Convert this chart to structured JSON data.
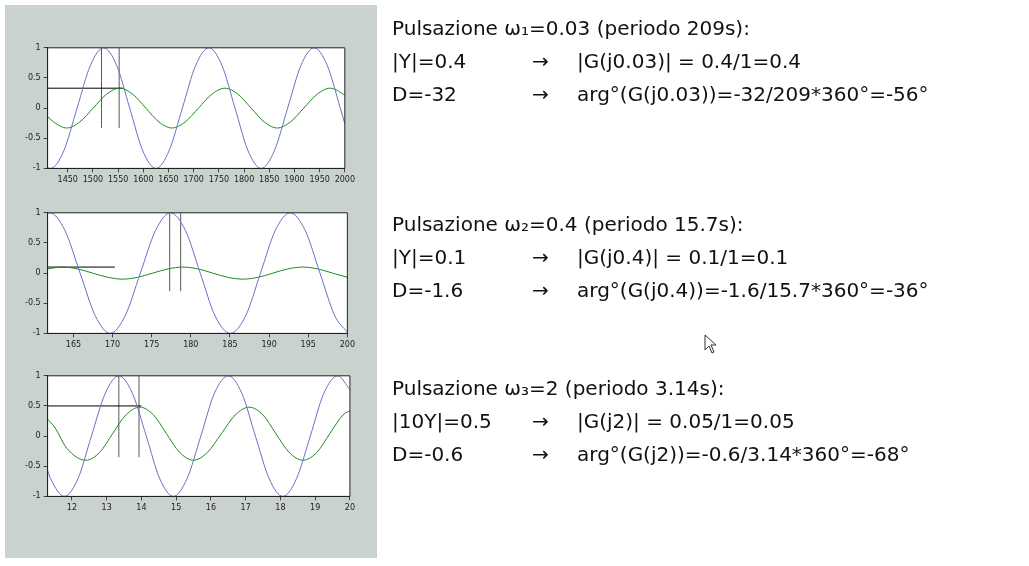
{
  "chart_data": [
    {
      "type": "line",
      "xlim": [
        1410,
        2000
      ],
      "xticks": [
        1450,
        1500,
        1550,
        1600,
        1650,
        1700,
        1750,
        1800,
        1850,
        1900,
        1950,
        2000
      ],
      "ylim": [
        -1,
        1
      ],
      "yticks": [
        -1,
        -0.5,
        0,
        0.5,
        1
      ],
      "grid": false,
      "legend": false,
      "marker": "none",
      "annotations": [
        "Pulsazione ω₁=0.03 (periodo 209s):",
        "|Y|=0.4",
        "→",
        "|G(j0.03)| = 0.4/1=0.4",
        "D=-32",
        "→",
        "arg°(G(j0.03))=-32/209*360°=-56°"
      ],
      "series": [
        {
          "color": "#6f6fc6",
          "x": [
            1410,
            1416,
            1442,
            1468.5,
            1495,
            1521,
            1547,
            1573,
            1599,
            1625,
            1651,
            1677.5,
            1704,
            1730,
            1756,
            1782,
            1808,
            1834,
            1860,
            1886.5,
            1913,
            1939,
            1965,
            1991,
            2000
          ],
          "values": [
            -0.99,
            -1,
            -0.71,
            0,
            0.71,
            1,
            0.71,
            0,
            -0.71,
            -1,
            -0.71,
            0,
            0.71,
            1,
            0.71,
            0,
            -0.71,
            -1,
            -0.71,
            0,
            0.71,
            1,
            0.71,
            0,
            -0.26
          ]
        },
        {
          "color": "#1f8a1f",
          "x": [
            1410,
            1422,
            1448,
            1474,
            1500.5,
            1527,
            1553,
            1579,
            1605,
            1631,
            1657,
            1683,
            1709.5,
            1736,
            1762,
            1788,
            1814,
            1840,
            1866,
            1892,
            1918.5,
            1945,
            1971,
            1997,
            2000
          ],
          "values": [
            -0.14,
            -0.23,
            -0.33,
            -0.23,
            0,
            0.23,
            0.33,
            0.23,
            0,
            -0.23,
            -0.33,
            -0.23,
            0,
            0.23,
            0.33,
            0.23,
            0,
            -0.23,
            -0.33,
            -0.23,
            0,
            0.23,
            0.33,
            0.23,
            0.21
          ]
        },
        {
          "color": "#000000",
          "x": [
            1410,
            1560
          ],
          "values": [
            0.33,
            0.33
          ]
        },
        {
          "color": "#555555",
          "x": [
            1517,
            1517
          ],
          "values": [
            -0.33,
            1
          ]
        },
        {
          "color": "#555555",
          "x": [
            1552,
            1552
          ],
          "values": [
            -0.33,
            1
          ]
        }
      ]
    },
    {
      "type": "line",
      "xlim": [
        161.7,
        200
      ],
      "xticks": [
        165,
        170,
        175,
        180,
        185,
        190,
        195,
        200
      ],
      "ylim": [
        -1,
        1
      ],
      "yticks": [
        -1,
        -0.5,
        0,
        0.5,
        1
      ],
      "grid": false,
      "legend": false,
      "marker": "none",
      "annotations": [
        "Pulsazione ω₂=0.4 (periodo 15.7s):",
        "|Y|=0.1",
        "→",
        "|G(j0.4)| = 0.1/1=0.1",
        "D=-1.6",
        "→",
        "arg°(G(j0.4))=-1.6/15.7*360°=-36°"
      ],
      "series": [
        {
          "color": "#6f6fc6",
          "x": [
            161.7,
            162,
            163.9,
            165.85,
            167.8,
            169.7,
            171.6,
            173.55,
            175.5,
            177.4,
            179.3,
            181.2,
            183.1,
            185.05,
            187,
            188.9,
            190.8,
            192.7,
            194.6,
            196.5,
            198.4,
            200
          ],
          "values": [
            0.99,
            1,
            0.71,
            0,
            -0.71,
            -1,
            -0.71,
            0,
            0.71,
            1,
            0.71,
            0,
            -0.71,
            -1,
            -0.71,
            0,
            0.71,
            1,
            0.71,
            0,
            -0.71,
            -0.98
          ]
        },
        {
          "color": "#1f8a1f",
          "x": [
            161.7,
            163.6,
            165.5,
            167.45,
            169.4,
            171.3,
            173.2,
            175.15,
            177.1,
            179,
            180.9,
            182.8,
            184.7,
            186.65,
            188.6,
            190.5,
            192.4,
            194.3,
            196.2,
            198.1,
            200
          ],
          "values": [
            0.07,
            0.1,
            0.07,
            0,
            -0.07,
            -0.1,
            -0.07,
            0,
            0.07,
            0.1,
            0.07,
            0,
            -0.07,
            -0.1,
            -0.07,
            0,
            0.07,
            0.1,
            0.07,
            0,
            -0.07
          ]
        },
        {
          "color": "#000000",
          "x": [
            161.7,
            170.3
          ],
          "values": [
            0.1,
            0.1
          ]
        },
        {
          "color": "#555555",
          "x": [
            177.3,
            177.3
          ],
          "values": [
            -0.3,
            1
          ]
        },
        {
          "color": "#555555",
          "x": [
            178.7,
            178.7
          ],
          "values": [
            -0.3,
            1
          ]
        }
      ]
    },
    {
      "type": "line",
      "xlim": [
        11.3,
        20
      ],
      "xticks": [
        12,
        13,
        14,
        15,
        16,
        17,
        18,
        19,
        20
      ],
      "ylim": [
        -1,
        1
      ],
      "yticks": [
        -1,
        -0.5,
        0,
        0.5,
        1
      ],
      "grid": false,
      "legend": false,
      "marker": "none",
      "annotations": [
        "Pulsazione ω₃=2 (periodo 3.14s):",
        "|10Y|=0.5",
        "→",
        "|G(j2)| = 0.05/1=0.05",
        "D=-0.6",
        "→",
        "arg°(G(j2))=-0.6/3.14*360°=-68°"
      ],
      "series": [
        {
          "color": "#6f6fc6",
          "x": [
            11.3,
            11.39,
            11.78,
            12.17,
            12.56,
            12.96,
            13.35,
            13.74,
            14.14,
            14.53,
            14.92,
            15.31,
            15.71,
            16.1,
            16.5,
            16.89,
            17.28,
            17.68,
            18.07,
            18.46,
            18.86,
            19.25,
            19.65,
            20
          ],
          "values": [
            -0.57,
            -0.71,
            -1,
            -0.71,
            0,
            0.71,
            1,
            0.71,
            0,
            -0.71,
            -1,
            -0.71,
            0,
            0.71,
            1,
            0.71,
            0,
            -0.71,
            -1,
            -0.71,
            0,
            0.71,
            1,
            0.77
          ]
        },
        {
          "color": "#1f8a1f",
          "x": [
            11.3,
            11.5,
            11.85,
            12.4,
            12.8,
            13.17,
            13.55,
            13.95,
            14.35,
            14.72,
            15.1,
            15.5,
            15.9,
            16.3,
            16.7,
            17.1,
            17.5,
            17.87,
            18.25,
            18.65,
            19.05,
            19.42,
            19.8,
            20
          ],
          "values": [
            0.28,
            0.15,
            -0.2,
            -0.4,
            -0.27,
            0.04,
            0.35,
            0.48,
            0.35,
            0.04,
            -0.27,
            -0.4,
            -0.27,
            0.04,
            0.35,
            0.48,
            0.35,
            0.04,
            -0.27,
            -0.4,
            -0.27,
            0.04,
            0.35,
            0.42
          ]
        },
        {
          "color": "#000000",
          "x": [
            11.3,
            14
          ],
          "values": [
            0.5,
            0.5
          ]
        },
        {
          "color": "#555555",
          "x": [
            13.35,
            13.35
          ],
          "values": [
            -0.35,
            1
          ]
        },
        {
          "color": "#555555",
          "x": [
            13.93,
            13.93
          ],
          "values": [
            -0.35,
            1
          ]
        }
      ]
    }
  ]
}
